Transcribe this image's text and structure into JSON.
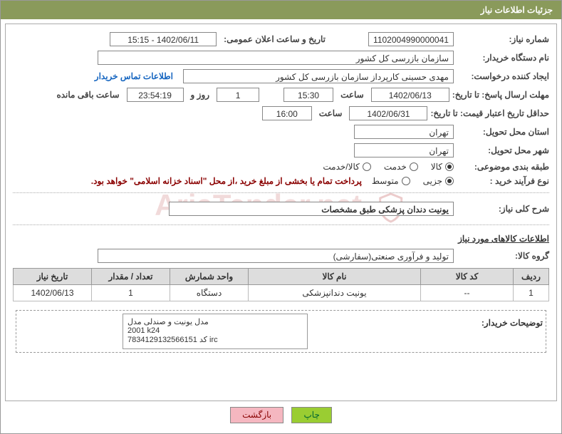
{
  "title": "جزئیات اطلاعات نیاز",
  "fields": {
    "need_number_lbl": "شماره نیاز:",
    "need_number": "1102004990000041",
    "announce_date_lbl": "تاریخ و ساعت اعلان عمومی:",
    "announce_date": "1402/06/11 - 15:15",
    "buyer_org_lbl": "نام دستگاه خریدار:",
    "buyer_org": "سازمان بازرسی کل کشور",
    "requester_lbl": "ایجاد کننده درخواست:",
    "requester": "مهدی حسینی کارپرداز سازمان بازرسی کل کشور",
    "contact_link": "اطلاعات تماس خریدار",
    "deadline_lbl": "مهلت ارسال پاسخ: تا تاریخ:",
    "deadline_date": "1402/06/13",
    "time_lbl": "ساعت",
    "deadline_time": "15:30",
    "days_val": "1",
    "days_lbl": "روز و",
    "countdown": "23:54:19",
    "remaining_lbl": "ساعت باقی مانده",
    "validity_lbl": "حداقل تاریخ اعتبار قیمت: تا تاریخ:",
    "validity_date": "1402/06/31",
    "validity_time": "16:00",
    "province_lbl": "استان محل تحویل:",
    "province": "تهران",
    "city_lbl": "شهر محل تحویل:",
    "city": "تهران",
    "category_lbl": "طبقه بندی موضوعی:",
    "cat_goods": "کالا",
    "cat_service": "خدمت",
    "cat_both": "کالا/خدمت",
    "purchase_type_lbl": "نوع فرآیند خرید :",
    "pt_minor": "جزیی",
    "pt_medium": "متوسط",
    "purchase_note": "پرداخت تمام یا بخشی از مبلغ خرید ،از محل \"اسناد خزانه اسلامی\" خواهد بود.",
    "summary_lbl": "شرح کلی نیاز:",
    "summary": "یونیت دندان پزشکی طبق مشخصات",
    "goods_section": "اطلاعات کالاهای مورد نیاز",
    "goods_group_lbl": "گروه کالا:",
    "goods_group": "تولید و فرآوری صنعتی(سفارشی)"
  },
  "table": {
    "headers": [
      "ردیف",
      "کد کالا",
      "نام کالا",
      "واحد شمارش",
      "تعداد / مقدار",
      "تاریخ نیاز"
    ],
    "col_widths": [
      "50px",
      "130px",
      "auto",
      "110px",
      "110px",
      "110px"
    ],
    "row": {
      "index": "1",
      "code": "--",
      "name": "یونیت دندانپزشکی",
      "unit": "دستگاه",
      "qty": "1",
      "date": "1402/06/13"
    }
  },
  "buyer_notes_lbl": "توضیحات خریدار:",
  "buyer_notes": "مدل یونیت و صندلی مدل\n2001  k24\nکد 7834129132566151   irc",
  "buttons": {
    "print": "چاپ",
    "back": "بازگشت"
  },
  "watermark": "AriaTender.net",
  "colors": {
    "header_bg": "#8a9a5b",
    "btn_green": "#9acd32",
    "btn_pink": "#f5b7c0"
  }
}
